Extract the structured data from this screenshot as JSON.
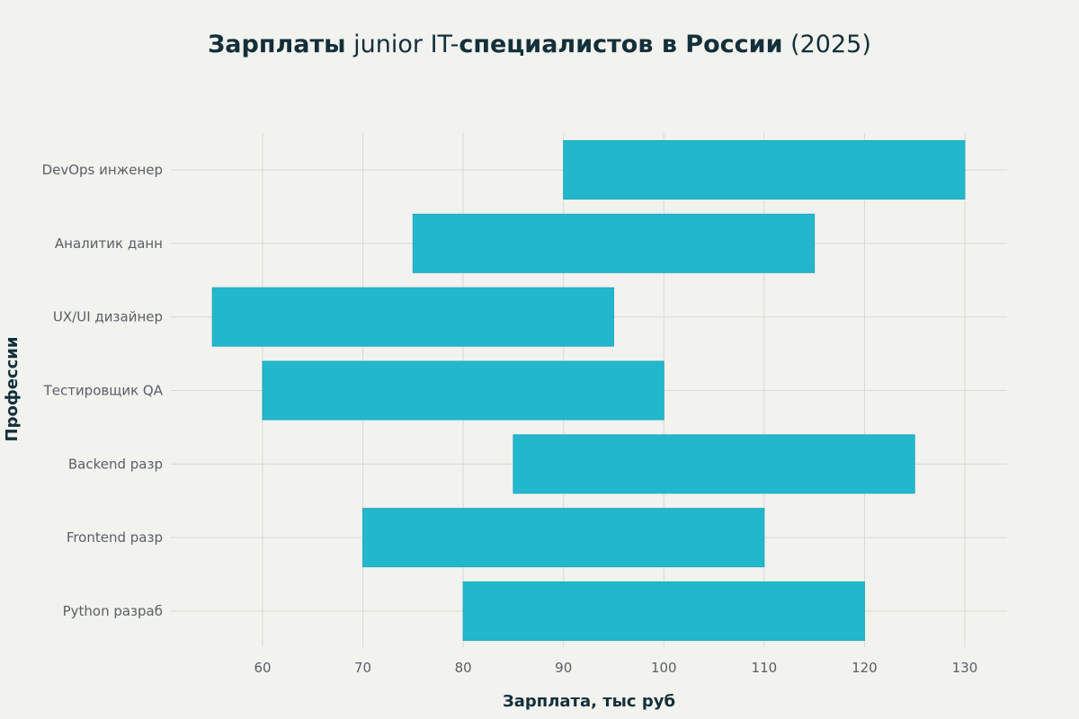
{
  "chart_data": {
    "type": "bar",
    "orientation": "horizontal",
    "title_parts": [
      {
        "text": "Зарплаты",
        "bold": true
      },
      {
        "text": " junior IT-",
        "bold": false
      },
      {
        "text": "специалистов в России",
        "bold": true
      },
      {
        "text": " (2025)",
        "bold": false
      }
    ],
    "xlabel": "Зарплата, тыс руб",
    "ylabel": "Профессии",
    "categories": [
      "DevOps инженер",
      "Аналитик данн",
      "UX/UI дизайнер",
      "Тестировщик QA",
      "Backend разр",
      "Frontend разр",
      "Python разраб"
    ],
    "series": [
      {
        "ranges": [
          [
            90,
            130
          ],
          [
            75,
            115
          ],
          [
            55,
            95
          ],
          [
            60,
            100
          ],
          [
            85,
            125
          ],
          [
            70,
            110
          ],
          [
            80,
            120
          ]
        ]
      }
    ],
    "xlim": [
      50,
      134
    ],
    "xticks": [
      60,
      70,
      80,
      90,
      100,
      110,
      120,
      130
    ],
    "grid": true,
    "legend": "none",
    "colors": {
      "bar_fill": "#23b7cd",
      "bar_stroke": "#1ea9bd",
      "grid": "#d9d9d4",
      "background": "#f2f2ee",
      "title": "#13303a",
      "labels": "#5a6068"
    }
  }
}
